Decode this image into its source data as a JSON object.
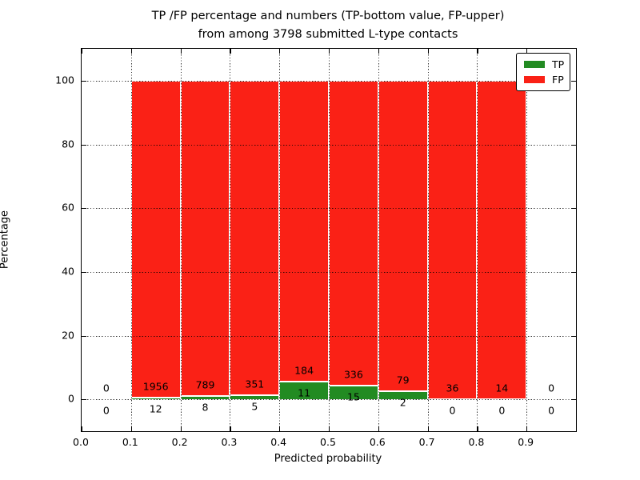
{
  "title": {
    "line1": "TP /FP percentage and numbers (TP-bottom value, FP-upper)",
    "line2": "from among 3798 submitted L-type contacts"
  },
  "chart_data": {
    "type": "bar",
    "stacked": true,
    "title": "TP /FP percentage and numbers (TP-bottom value, FP-upper) from among 3798 submitted L-type contacts",
    "xlabel": "Predicted probability",
    "ylabel": "Percentage",
    "xlim": [
      0.0,
      1.0
    ],
    "ylim": [
      -10,
      110
    ],
    "xtick_values": [
      0.0,
      0.1,
      0.2,
      0.3,
      0.4,
      0.5,
      0.6,
      0.7,
      0.8,
      0.9
    ],
    "xtick_labels": [
      "0.0",
      "0.1",
      "0.2",
      "0.3",
      "0.4",
      "0.5",
      "0.6",
      "0.7",
      "0.8",
      "0.9"
    ],
    "ytick_values": [
      0,
      20,
      40,
      60,
      80,
      100
    ],
    "grid": "dotted",
    "bin_width": 0.1,
    "bins": [
      {
        "range": "0.0-0.1",
        "tp": 0,
        "fp": 0
      },
      {
        "range": "0.1-0.2",
        "tp": 12,
        "fp": 1956
      },
      {
        "range": "0.2-0.3",
        "tp": 8,
        "fp": 789
      },
      {
        "range": "0.3-0.4",
        "tp": 5,
        "fp": 351
      },
      {
        "range": "0.4-0.5",
        "tp": 11,
        "fp": 184
      },
      {
        "range": "0.5-0.6",
        "tp": 15,
        "fp": 336
      },
      {
        "range": "0.6-0.7",
        "tp": 2,
        "fp": 79
      },
      {
        "range": "0.7-0.8",
        "tp": 0,
        "fp": 36
      },
      {
        "range": "0.8-0.9",
        "tp": 0,
        "fp": 14
      },
      {
        "range": "0.9-1.0",
        "tp": 0,
        "fp": 0
      }
    ],
    "legend": {
      "position": "upper right",
      "entries": [
        {
          "label": "TP",
          "color": "#228b22"
        },
        {
          "label": "FP",
          "color": "#fa2116"
        }
      ]
    }
  },
  "colors": {
    "tp": "#228b22",
    "fp": "#fa2116",
    "grid": "#000000",
    "text": "#000000",
    "background": "#ffffff"
  }
}
